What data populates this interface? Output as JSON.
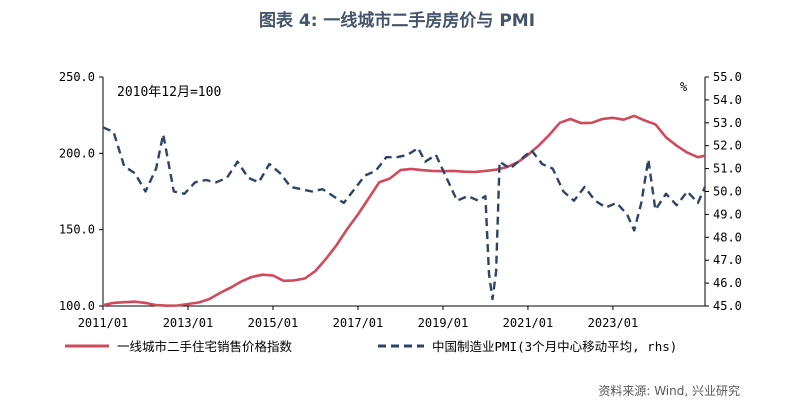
{
  "chart_data": {
    "type": "line",
    "title": "图表 4:  一线城市二手房房价与 PMI",
    "annotation": "2010年12月=100",
    "right_axis_unit": "%",
    "source": "资料来源: Wind, 兴业研究",
    "colors": {
      "series1": "#D04A5C",
      "series2": "#2D4468",
      "title": "#44546A"
    },
    "x_ticks": [
      "2011/01",
      "2013/01",
      "2015/01",
      "2017/01",
      "2019/01",
      "2021/01",
      "2023/01"
    ],
    "y_left": {
      "ylim": [
        100,
        250
      ],
      "ticks": [
        "100.0",
        "150.0",
        "200.0",
        "250.0"
      ]
    },
    "y_right": {
      "ylim": [
        45,
        55
      ],
      "ticks": [
        "45.0",
        "46.0",
        "47.0",
        "48.0",
        "49.0",
        "50.0",
        "51.0",
        "52.0",
        "53.0",
        "54.0",
        "55.0"
      ]
    },
    "grid": false,
    "legend": "bottom",
    "series": [
      {
        "name": "一线城市二手住宅销售价格指数",
        "axis": "left",
        "style": "solid",
        "points": [
          [
            "2011/01",
            100.5
          ],
          [
            "2011/04",
            102.0
          ],
          [
            "2011/07",
            102.5
          ],
          [
            "2011/10",
            102.8
          ],
          [
            "2012/01",
            102.0
          ],
          [
            "2012/04",
            100.6
          ],
          [
            "2012/07",
            100.2
          ],
          [
            "2012/10",
            100.3
          ],
          [
            "2013/01",
            101.3
          ],
          [
            "2013/04",
            102.3
          ],
          [
            "2013/07",
            104.5
          ],
          [
            "2013/10",
            108.5
          ],
          [
            "2014/01",
            112.0
          ],
          [
            "2014/04",
            116.0
          ],
          [
            "2014/07",
            119.0
          ],
          [
            "2014/10",
            120.5
          ],
          [
            "2015/01",
            120.0
          ],
          [
            "2015/04",
            116.5
          ],
          [
            "2015/07",
            116.8
          ],
          [
            "2015/10",
            118.0
          ],
          [
            "2016/01",
            123.0
          ],
          [
            "2016/04",
            131.0
          ],
          [
            "2016/07",
            140.0
          ],
          [
            "2016/10",
            150.5
          ],
          [
            "2017/01",
            160.0
          ],
          [
            "2017/04",
            170.5
          ],
          [
            "2017/07",
            181.0
          ],
          [
            "2017/10",
            183.5
          ],
          [
            "2018/01",
            189.0
          ],
          [
            "2018/04",
            189.8
          ],
          [
            "2018/07",
            189.0
          ],
          [
            "2018/10",
            188.5
          ],
          [
            "2019/01",
            188.3
          ],
          [
            "2019/04",
            188.5
          ],
          [
            "2019/07",
            188.0
          ],
          [
            "2019/10",
            187.8
          ],
          [
            "2020/01",
            188.5
          ],
          [
            "2020/04",
            189.3
          ],
          [
            "2020/07",
            191.0
          ],
          [
            "2020/10",
            194.0
          ],
          [
            "2021/01",
            199.0
          ],
          [
            "2021/04",
            205.0
          ],
          [
            "2021/07",
            212.0
          ],
          [
            "2021/10",
            220.0
          ],
          [
            "2022/01",
            222.5
          ],
          [
            "2022/04",
            219.8
          ],
          [
            "2022/07",
            220.0
          ],
          [
            "2022/10",
            222.5
          ],
          [
            "2023/01",
            223.3
          ],
          [
            "2023/04",
            222.0
          ],
          [
            "2023/07",
            224.5
          ],
          [
            "2023/10",
            221.5
          ],
          [
            "2024/01",
            219.0
          ],
          [
            "2024/04",
            210.5
          ],
          [
            "2024/07",
            205.0
          ],
          [
            "2024/10",
            200.5
          ],
          [
            "2025/01",
            197.5
          ],
          [
            "2025/03",
            198.5
          ]
        ]
      },
      {
        "name": "中国制造业PMI(3个月中心移动平均, rhs)",
        "axis": "right",
        "style": "dashed",
        "points": [
          [
            "2011/01",
            52.8
          ],
          [
            "2011/04",
            52.6
          ],
          [
            "2011/07",
            51.1
          ],
          [
            "2011/10",
            50.8
          ],
          [
            "2012/01",
            50.0
          ],
          [
            "2012/04",
            51.0
          ],
          [
            "2012/06",
            52.5
          ],
          [
            "2012/09",
            50.0
          ],
          [
            "2012/12",
            49.9
          ],
          [
            "2013/03",
            50.4
          ],
          [
            "2013/06",
            50.5
          ],
          [
            "2013/09",
            50.4
          ],
          [
            "2013/12",
            50.6
          ],
          [
            "2014/03",
            51.3
          ],
          [
            "2014/06",
            50.6
          ],
          [
            "2014/09",
            50.4
          ],
          [
            "2014/12",
            51.2
          ],
          [
            "2015/03",
            50.8
          ],
          [
            "2015/06",
            50.2
          ],
          [
            "2015/09",
            50.1
          ],
          [
            "2015/12",
            50.0
          ],
          [
            "2016/03",
            50.1
          ],
          [
            "2016/06",
            49.8
          ],
          [
            "2016/09",
            49.5
          ],
          [
            "2016/12",
            50.1
          ],
          [
            "2017/03",
            50.7
          ],
          [
            "2017/06",
            50.9
          ],
          [
            "2017/09",
            51.5
          ],
          [
            "2017/12",
            51.5
          ],
          [
            "2018/03",
            51.6
          ],
          [
            "2018/06",
            51.9
          ],
          [
            "2018/08",
            51.3
          ],
          [
            "2018/11",
            51.6
          ],
          [
            "2019/02",
            50.6
          ],
          [
            "2019/05",
            49.6
          ],
          [
            "2019/08",
            49.8
          ],
          [
            "2019/11",
            49.6
          ],
          [
            "2020/01",
            49.8
          ],
          [
            "2020/02",
            46.4
          ],
          [
            "2020/03",
            45.3
          ],
          [
            "2020/04",
            46.5
          ],
          [
            "2020/05",
            51.3
          ],
          [
            "2020/08",
            51.0
          ],
          [
            "2020/11",
            51.4
          ],
          [
            "2021/02",
            51.8
          ],
          [
            "2021/05",
            51.2
          ],
          [
            "2021/08",
            51.0
          ],
          [
            "2021/11",
            50.0
          ],
          [
            "2022/02",
            49.6
          ],
          [
            "2022/05",
            50.2
          ],
          [
            "2022/08",
            49.6
          ],
          [
            "2022/11",
            49.3
          ],
          [
            "2023/02",
            49.5
          ],
          [
            "2023/05",
            49.0
          ],
          [
            "2023/07",
            48.3
          ],
          [
            "2023/09",
            49.5
          ],
          [
            "2023/11",
            51.4
          ],
          [
            "2024/01",
            49.2
          ],
          [
            "2024/04",
            49.9
          ],
          [
            "2024/07",
            49.4
          ],
          [
            "2024/10",
            50.0
          ],
          [
            "2025/01",
            49.5
          ],
          [
            "2025/03",
            50.2
          ]
        ]
      }
    ]
  }
}
